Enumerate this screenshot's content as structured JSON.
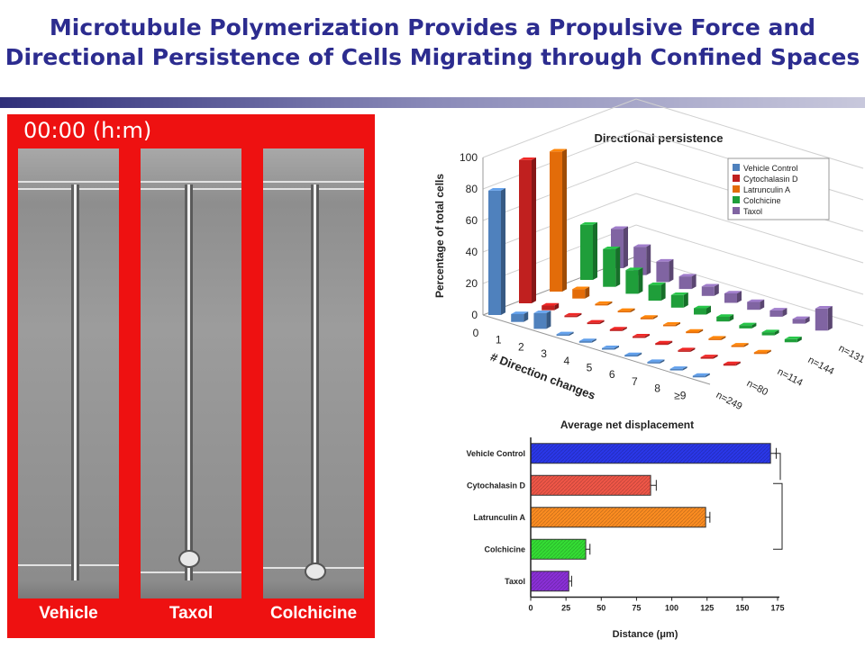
{
  "slide": {
    "title_line1": "Microtubule Polymerization Provides a Propulsive Force and",
    "title_line2": "Directional Persistence of Cells Migrating through Confined Spaces"
  },
  "micrograph": {
    "timestamp": "00:00 (h:m)",
    "panels": [
      "Vehicle",
      "Taxol",
      "Colchicine"
    ]
  },
  "chart_data": [
    {
      "type": "bar",
      "subtype": "3d-grouped",
      "title": "Directional persistence",
      "ylabel": "Percentage of total cells",
      "xlabel": "# Direction changes",
      "ylim": [
        0,
        100
      ],
      "yticks": [
        "0",
        "20",
        "40",
        "60",
        "80",
        "100"
      ],
      "categories": [
        "0",
        "1",
        "2",
        "3",
        "4",
        "5",
        "6",
        "7",
        "8",
        "≥9"
      ],
      "legend_placement": "top-right",
      "series": [
        {
          "name": "Vehicle Control",
          "color": "#4f81bd",
          "n_label": "n=249",
          "values": [
            79,
            5,
            10,
            1,
            1,
            1,
            1,
            1,
            1,
            1
          ]
        },
        {
          "name": "Cytochalasin D",
          "color": "#c0201f",
          "n_label": "n=80",
          "values": [
            91,
            3,
            1,
            1,
            1,
            1,
            1,
            1,
            1,
            1
          ]
        },
        {
          "name": "Latrunculin A",
          "color": "#e36c09",
          "n_label": "n=114",
          "values": [
            89,
            6,
            1,
            1,
            1,
            1,
            1,
            1,
            1,
            1
          ]
        },
        {
          "name": "Colchicine",
          "color": "#1f9e3a",
          "n_label": "n=144",
          "values": [
            35,
            24,
            15,
            10,
            8,
            4,
            3,
            2,
            2,
            2
          ]
        },
        {
          "name": "Taxol",
          "color": "#8064a2",
          "n_label": "n=131",
          "values": [
            25,
            18,
            13,
            8,
            6,
            6,
            5,
            4,
            3,
            14
          ]
        }
      ]
    },
    {
      "type": "bar",
      "orientation": "horizontal",
      "title": "Average net displacement",
      "xlabel": "Distance (μm)",
      "xlim": [
        0,
        175
      ],
      "xticks": [
        "0",
        "25",
        "50",
        "75",
        "100",
        "125",
        "150",
        "175"
      ],
      "categories": [
        "Vehicle Control",
        "Cytochalasin D",
        "Latrunculin A",
        "Colchicine",
        "Taxol"
      ],
      "values": [
        170,
        85,
        124,
        39,
        27
      ],
      "errors": [
        4,
        4,
        3,
        3,
        2
      ],
      "colors": [
        "#2a37e8",
        "#ef5647",
        "#fb8c21",
        "#34dd34",
        "#8a2fd6"
      ]
    }
  ]
}
